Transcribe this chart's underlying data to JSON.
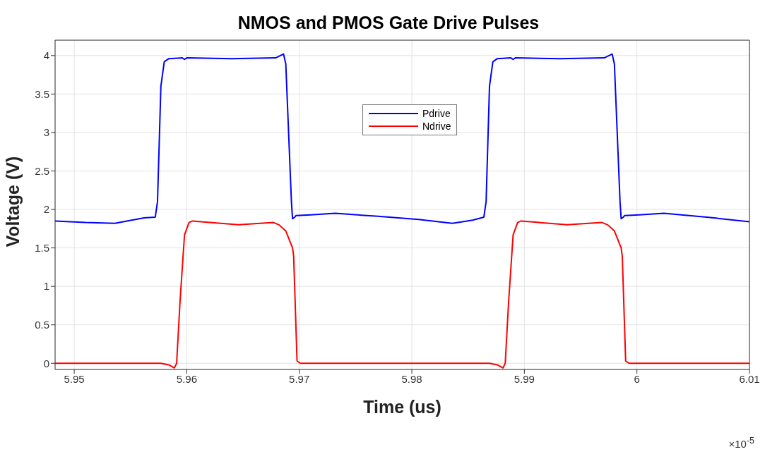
{
  "chart_data": {
    "type": "line",
    "title": "NMOS and PMOS Gate Drive Pulses",
    "xlabel": "Time (us)",
    "ylabel": "Voltage (V)",
    "xlim": [
      5.9483,
      6.01
    ],
    "xticks": [
      5.95,
      5.96,
      5.97,
      5.98,
      5.99,
      6,
      6.01
    ],
    "ylim": [
      -0.08,
      4.2
    ],
    "yticks": [
      0,
      0.5,
      1,
      1.5,
      2,
      2.5,
      3,
      3.5,
      4
    ],
    "grid": true,
    "legend": "top",
    "marker": "none",
    "line_style": "solid",
    "annotations": [
      "×10$^{-5}$"
    ],
    "series": [
      {
        "name": "Pdrive",
        "color": "#0000ff",
        "x": [
          5.9483,
          5.951,
          5.9536,
          5.9562,
          5.9572,
          5.9574,
          5.9577,
          5.958,
          5.9584,
          5.9596,
          5.9598,
          5.96,
          5.964,
          5.9679,
          5.9686,
          5.9688,
          5.9693,
          5.9694,
          5.9696,
          5.9697,
          5.971,
          5.9732,
          5.977,
          5.9806,
          5.9836,
          5.9854,
          5.9864,
          5.9866,
          5.9869,
          5.9872,
          5.9876,
          5.9888,
          5.989,
          5.9892,
          5.9932,
          5.9971,
          5.9978,
          5.998,
          5.9985,
          5.9986,
          5.9988,
          5.9989,
          6.0002,
          6.0024,
          6.0062,
          6.01
        ],
        "values": [
          1.85,
          1.83,
          1.82,
          1.89,
          1.9,
          2.1,
          3.6,
          3.92,
          3.96,
          3.97,
          3.95,
          3.97,
          3.96,
          3.97,
          4.02,
          3.89,
          2.1,
          1.88,
          1.9,
          1.92,
          1.93,
          1.95,
          1.91,
          1.87,
          1.82,
          1.86,
          1.9,
          2.1,
          3.6,
          3.92,
          3.96,
          3.97,
          3.95,
          3.97,
          3.96,
          3.97,
          4.02,
          3.89,
          2.1,
          1.88,
          1.9,
          1.92,
          1.93,
          1.95,
          1.9,
          1.84
        ]
      },
      {
        "name": "Ndrive",
        "color": "#ff0000",
        "x": [
          5.9483,
          5.9577,
          5.9584,
          5.9589,
          5.9591,
          5.9594,
          5.9598,
          5.9602,
          5.9605,
          5.9646,
          5.9677,
          5.9682,
          5.9688,
          5.9694,
          5.9695,
          5.9698,
          5.9701,
          5.9869,
          5.9876,
          5.9881,
          5.9883,
          5.9886,
          5.989,
          5.9894,
          5.9897,
          5.9938,
          5.9969,
          5.9974,
          5.998,
          5.9986,
          5.9987,
          5.999,
          5.9993,
          6.01
        ],
        "values": [
          0,
          0,
          -0.02,
          -0.06,
          0,
          0.8,
          1.67,
          1.83,
          1.85,
          1.8,
          1.83,
          1.8,
          1.72,
          1.5,
          1.39,
          0.03,
          0,
          0,
          -0.02,
          -0.06,
          0,
          0.8,
          1.67,
          1.83,
          1.85,
          1.8,
          1.83,
          1.8,
          1.72,
          1.5,
          1.39,
          0.03,
          0,
          0
        ]
      }
    ]
  }
}
